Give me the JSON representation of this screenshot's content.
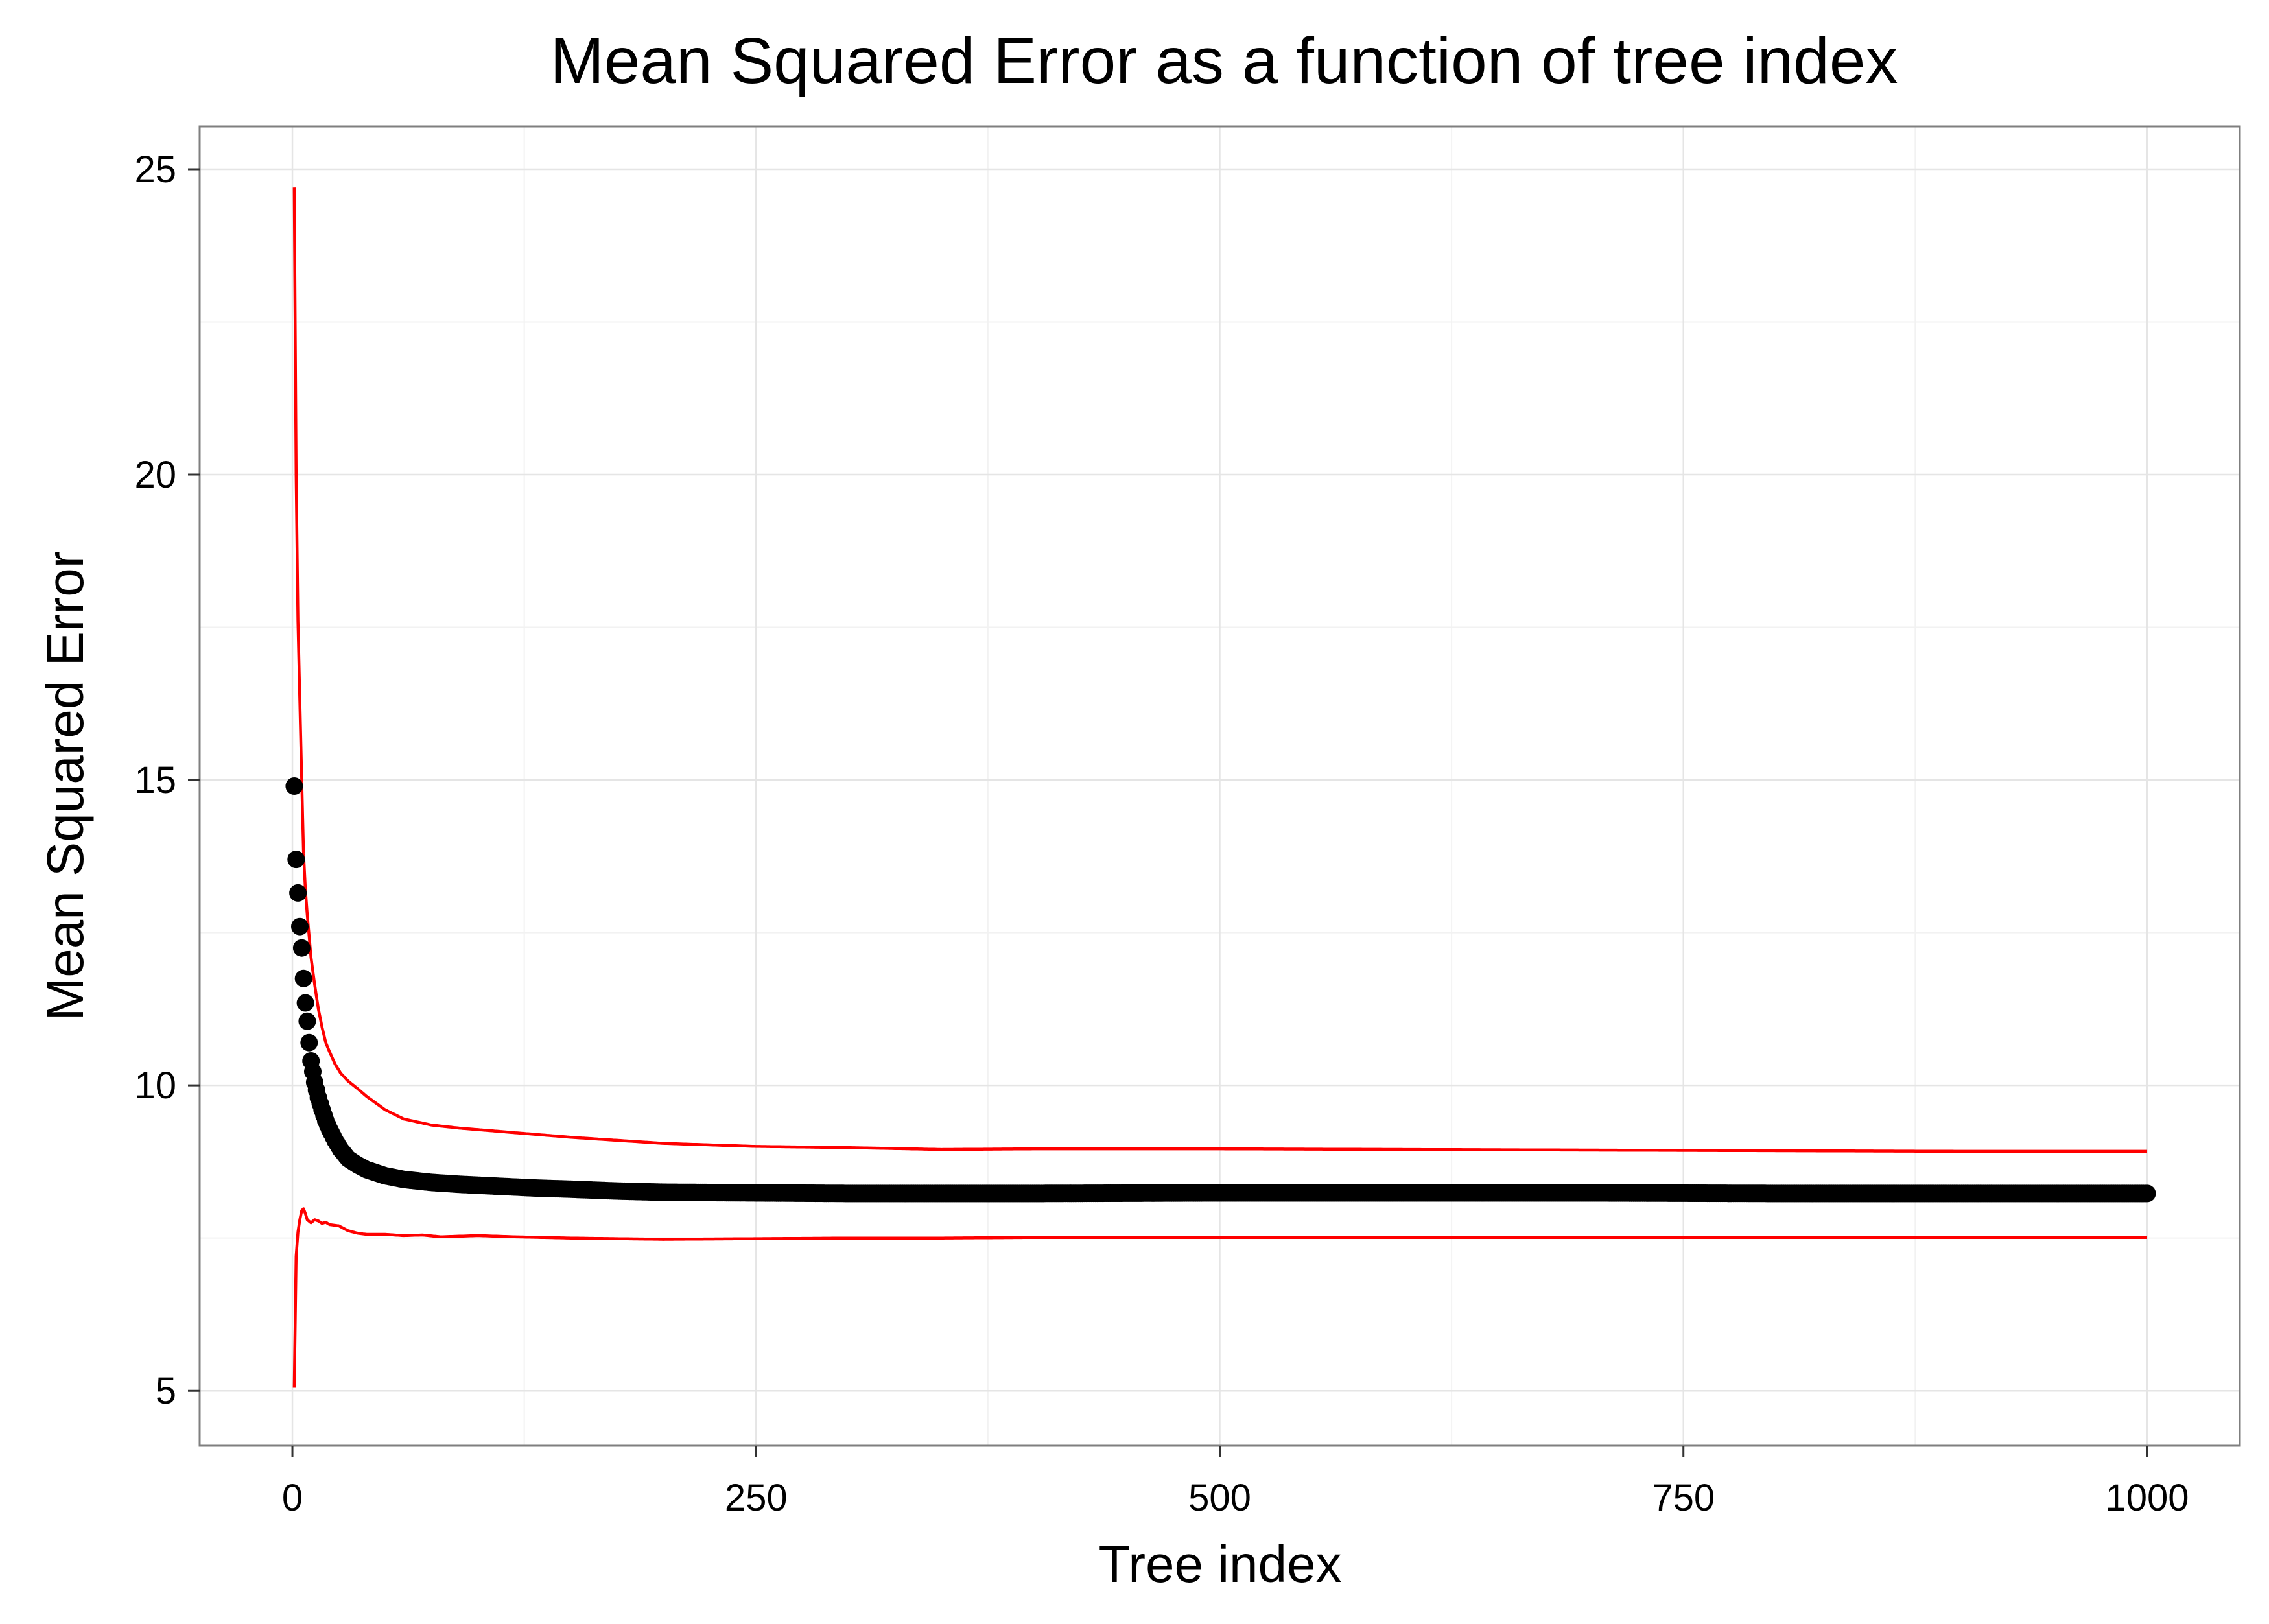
{
  "chart_data": {
    "type": "scatter",
    "title": "Mean Squared Error as a function of tree index",
    "xlabel": "Tree index",
    "ylabel": "Mean Squared Error",
    "xlim": [
      -50,
      1050
    ],
    "ylim": [
      4.1,
      25.7
    ],
    "x_ticks": [
      0,
      250,
      500,
      750,
      1000
    ],
    "x_tick_labels": [
      "0",
      "250",
      "500",
      "750",
      "1000"
    ],
    "y_ticks": [
      5,
      10,
      15,
      20,
      25
    ],
    "y_tick_labels": [
      "5",
      "10",
      "15",
      "20",
      "25"
    ],
    "grid": true,
    "legend": "none",
    "series": [
      {
        "role": "points",
        "color": "#000000",
        "x": [
          1,
          2,
          3,
          4,
          5,
          6,
          7,
          8,
          9,
          10,
          12,
          14,
          16,
          18,
          20,
          23,
          26,
          30,
          35,
          40,
          50,
          60,
          75,
          90,
          110,
          130,
          150,
          175,
          200,
          250,
          300,
          350,
          400,
          500,
          600,
          700,
          800,
          900,
          1000
        ],
        "y": [
          14.9,
          13.7,
          13.15,
          12.6,
          12.25,
          11.75,
          11.35,
          11.05,
          10.7,
          10.4,
          10.05,
          9.8,
          9.6,
          9.42,
          9.28,
          9.1,
          8.95,
          8.8,
          8.7,
          8.62,
          8.52,
          8.46,
          8.41,
          8.38,
          8.35,
          8.32,
          8.3,
          8.27,
          8.25,
          8.24,
          8.23,
          8.23,
          8.23,
          8.24,
          8.24,
          8.24,
          8.23,
          8.23,
          8.23
        ]
      },
      {
        "role": "upper-band",
        "color": "#ff0000",
        "x": [
          1,
          2,
          3,
          4,
          5,
          6,
          7,
          8,
          10,
          12,
          14,
          16,
          18,
          20,
          23,
          26,
          30,
          35,
          40,
          50,
          60,
          75,
          90,
          110,
          130,
          150,
          200,
          250,
          300,
          350,
          400,
          500,
          600,
          700,
          800,
          900,
          1000
        ],
        "y": [
          24.7,
          20.0,
          17.6,
          16.3,
          15.0,
          13.8,
          13.2,
          12.8,
          12.1,
          11.65,
          11.25,
          10.95,
          10.7,
          10.55,
          10.35,
          10.2,
          10.07,
          9.95,
          9.82,
          9.6,
          9.45,
          9.35,
          9.3,
          9.25,
          9.2,
          9.15,
          9.05,
          9.0,
          8.98,
          8.95,
          8.96,
          8.96,
          8.95,
          8.94,
          8.93,
          8.92,
          8.92
        ]
      },
      {
        "role": "lower-band",
        "color": "#ff0000",
        "x": [
          1,
          2,
          3,
          4,
          5,
          6,
          7,
          8,
          10,
          12,
          14,
          16,
          18,
          20,
          25,
          30,
          35,
          40,
          50,
          60,
          70,
          80,
          90,
          100,
          120,
          150,
          200,
          250,
          300,
          350,
          400,
          500,
          600,
          700,
          800,
          900,
          1000
        ],
        "y": [
          5.05,
          7.2,
          7.6,
          7.8,
          7.95,
          7.98,
          7.9,
          7.8,
          7.75,
          7.8,
          7.78,
          7.74,
          7.76,
          7.72,
          7.7,
          7.62,
          7.58,
          7.56,
          7.56,
          7.54,
          7.55,
          7.52,
          7.53,
          7.54,
          7.52,
          7.5,
          7.48,
          7.49,
          7.5,
          7.5,
          7.51,
          7.51,
          7.51,
          7.51,
          7.51,
          7.51,
          7.51
        ]
      }
    ]
  }
}
